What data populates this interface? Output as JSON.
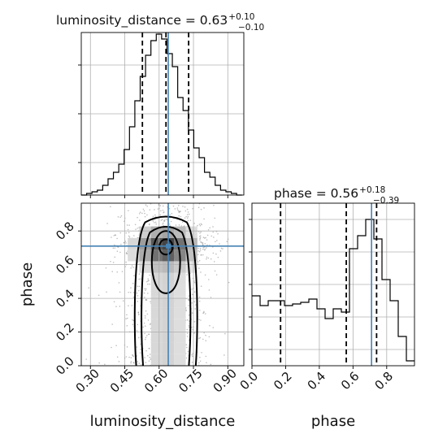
{
  "chart_data": {
    "type": "corner",
    "parameters": [
      "luminosity_distance",
      "phase"
    ],
    "panels": [
      {
        "kind": "histogram",
        "param": "luminosity_distance",
        "title": {
          "prefix": "luminosity_distance = 0.63",
          "upper": "+0.10",
          "lower": "−0.10"
        },
        "xlim": [
          0.26,
          0.97
        ],
        "ylim": [
          0,
          1
        ],
        "x_ticks": [
          0.3,
          0.45,
          0.6,
          0.75,
          0.9
        ],
        "y_ticks": [
          0.2,
          0.5,
          0.8
        ],
        "bin_edges": [
          0.26,
          0.2834,
          0.3068,
          0.3302,
          0.3536,
          0.377,
          0.4004,
          0.4238,
          0.4472,
          0.4706,
          0.494,
          0.5174,
          0.5408,
          0.5642,
          0.5876,
          0.611,
          0.6344,
          0.6578,
          0.6812,
          0.7046,
          0.728,
          0.7514,
          0.7748,
          0.7982,
          0.8216,
          0.845,
          0.8684,
          0.8918,
          0.9152,
          0.9386,
          0.962
        ],
        "counts": [
          0.0,
          0.01,
          0.02,
          0.03,
          0.06,
          0.1,
          0.14,
          0.19,
          0.28,
          0.42,
          0.58,
          0.73,
          0.86,
          0.95,
          0.99,
          0.96,
          0.87,
          0.79,
          0.6,
          0.52,
          0.4,
          0.29,
          0.23,
          0.14,
          0.11,
          0.06,
          0.03,
          0.02,
          0.01,
          0.0
        ],
        "quantiles": [
          0.527,
          0.63,
          0.729
        ],
        "truth": 0.64
      },
      {
        "kind": "histogram",
        "param": "phase",
        "title": {
          "prefix": "phase = 0.56",
          "upper": "+0.18",
          "lower": "−0.39"
        },
        "xlim": [
          0.0,
          0.965
        ],
        "ylim": [
          0,
          1
        ],
        "x_ticks": [
          0.0,
          0.2,
          0.4,
          0.6,
          0.8
        ],
        "y_ticks": [
          0.1,
          0.3,
          0.5,
          0.7,
          0.9
        ],
        "bin_edges": [
          0.0,
          0.0483,
          0.0965,
          0.1448,
          0.193,
          0.2413,
          0.2895,
          0.3378,
          0.386,
          0.4343,
          0.4825,
          0.5308,
          0.579,
          0.6273,
          0.6755,
          0.7238,
          0.772,
          0.8203,
          0.8685,
          0.9168,
          0.965
        ],
        "counts": [
          0.43,
          0.37,
          0.4,
          0.4,
          0.37,
          0.38,
          0.39,
          0.41,
          0.35,
          0.29,
          0.35,
          0.33,
          0.72,
          0.8,
          0.9,
          0.78,
          0.53,
          0.4,
          0.18,
          0.03
        ],
        "quantiles": [
          0.17,
          0.56,
          0.74
        ],
        "truth": 0.71
      },
      {
        "kind": "hist2d",
        "x_param": "luminosity_distance",
        "y_param": "phase",
        "xlim": [
          0.26,
          0.97
        ],
        "ylim": [
          0.0,
          0.965
        ],
        "x_ticks": [
          0.3,
          0.45,
          0.6,
          0.75,
          0.9
        ],
        "y_ticks": [
          0.0,
          0.2,
          0.4,
          0.6,
          0.8
        ],
        "xlabel": "luminosity_distance",
        "ylabel": "phase",
        "truth": {
          "x": 0.64,
          "y": 0.71
        },
        "density_center": {
          "x": 0.63,
          "y": 0.7
        },
        "contour_levels": [
          {
            "peak_x": 0.63,
            "x_halfwidth": 0.035,
            "top": 0.75,
            "bottom": 0.66
          },
          {
            "peak_x": 0.63,
            "x_halfwidth": 0.075,
            "top": 0.8,
            "bottom": 0.43
          },
          {
            "peak_x": 0.63,
            "x_halfwidth": 0.1,
            "top": 0.84,
            "bottom": 0.0
          },
          {
            "peak_x": 0.63,
            "x_halfwidth": 0.13,
            "top": 0.9,
            "bottom": 0.0
          }
        ]
      }
    ],
    "xlabels": [
      "luminosity_distance",
      "phase"
    ],
    "ylabels": [
      "",
      "phase"
    ]
  }
}
